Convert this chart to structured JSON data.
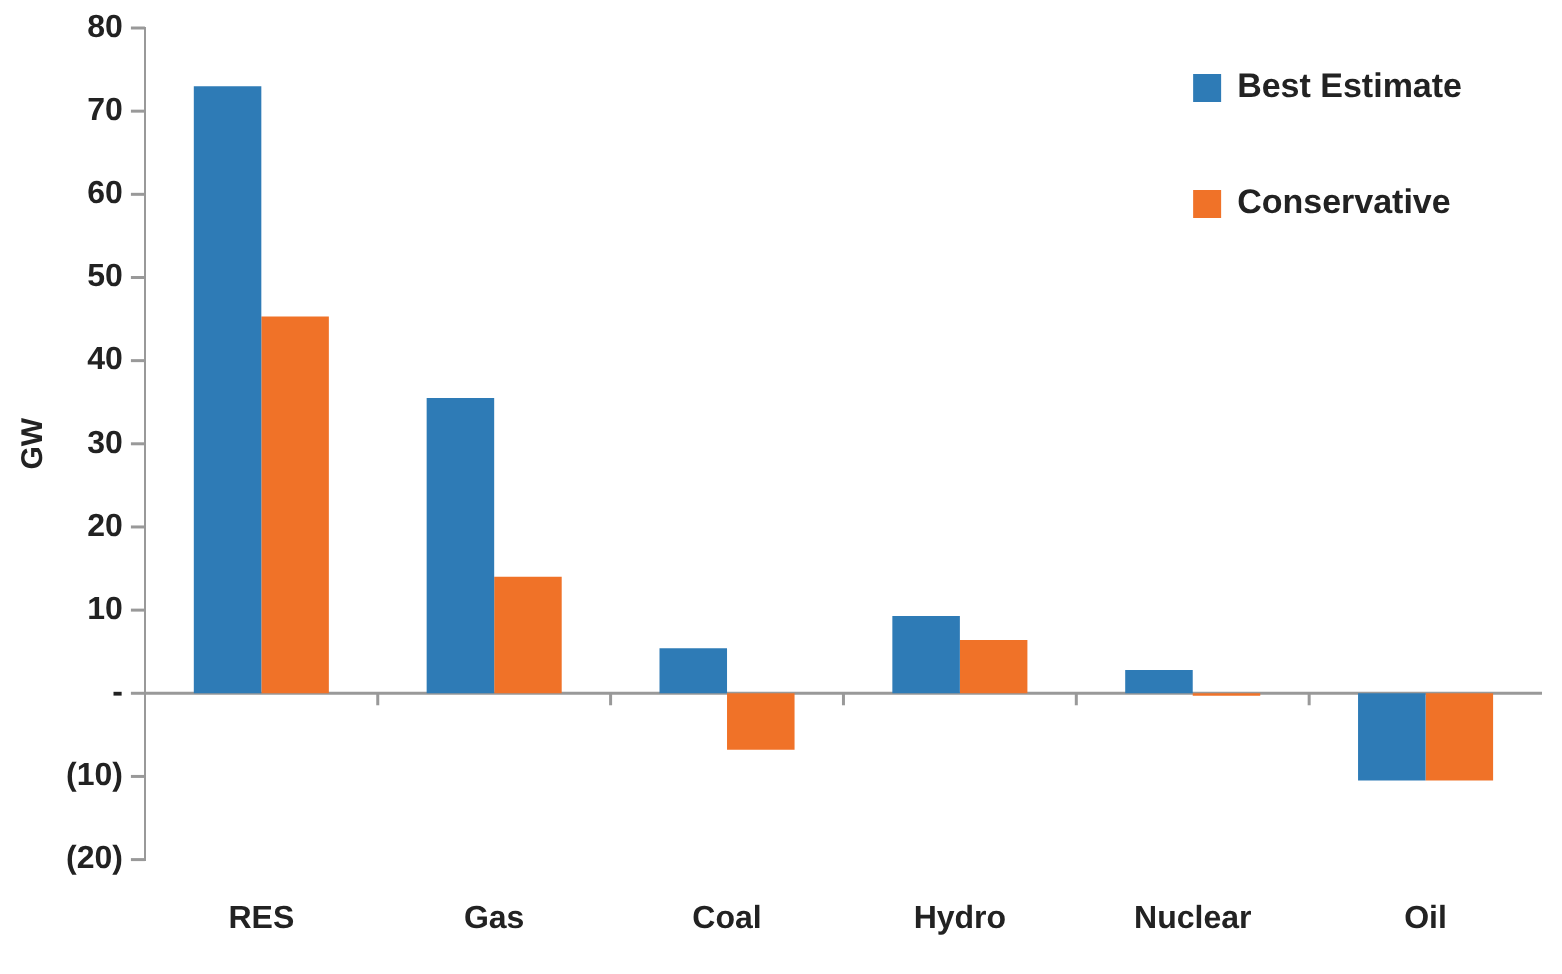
{
  "chart_data": {
    "type": "bar",
    "ylabel": "GW",
    "categories": [
      "RES",
      "Gas",
      "Coal",
      "Hydro",
      "Nuclear",
      "Oil"
    ],
    "series": [
      {
        "name": "Best Estimate",
        "color": "#2e7bb6",
        "values": [
          73,
          35.5,
          5.4,
          9.3,
          2.8,
          -10.5
        ]
      },
      {
        "name": "Conservative",
        "color": "#f07228",
        "values": [
          45.3,
          14,
          -6.8,
          6.4,
          -0.3,
          -10.5
        ]
      }
    ],
    "ylim": [
      -20,
      80
    ],
    "yticks": [
      {
        "value": -20,
        "label": "(20)"
      },
      {
        "value": -10,
        "label": "(10)"
      },
      {
        "value": 0,
        "label": "-"
      },
      10,
      20,
      30,
      40,
      50,
      60,
      70,
      80
    ],
    "legend": "top right"
  }
}
